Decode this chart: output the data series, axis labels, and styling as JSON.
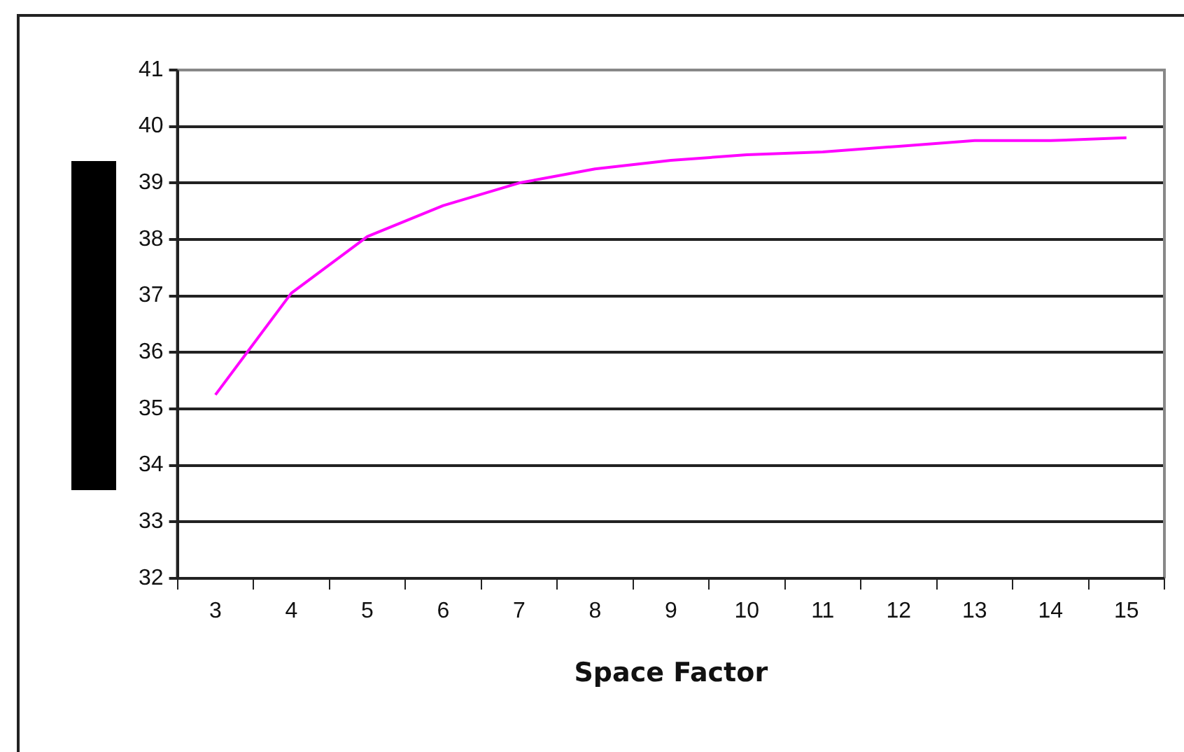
{
  "chart_data": {
    "type": "line",
    "xlabel": "Space Factor",
    "categories": [
      "3",
      "4",
      "5",
      "6",
      "7",
      "8",
      "9",
      "10",
      "11",
      "12",
      "13",
      "14",
      "15"
    ],
    "series": [
      {
        "color": "#ff00ff",
        "values": [
          35.25,
          37.05,
          38.05,
          38.6,
          39.0,
          39.25,
          39.4,
          39.5,
          39.55,
          39.65,
          39.75,
          39.75,
          39.8
        ]
      }
    ],
    "ylim": [
      32,
      41
    ],
    "yticks": [
      32,
      33,
      34,
      35,
      36,
      37,
      38,
      39,
      40,
      41
    ],
    "grid": "y",
    "legend": false,
    "marker": "none",
    "line_style": "solid"
  }
}
